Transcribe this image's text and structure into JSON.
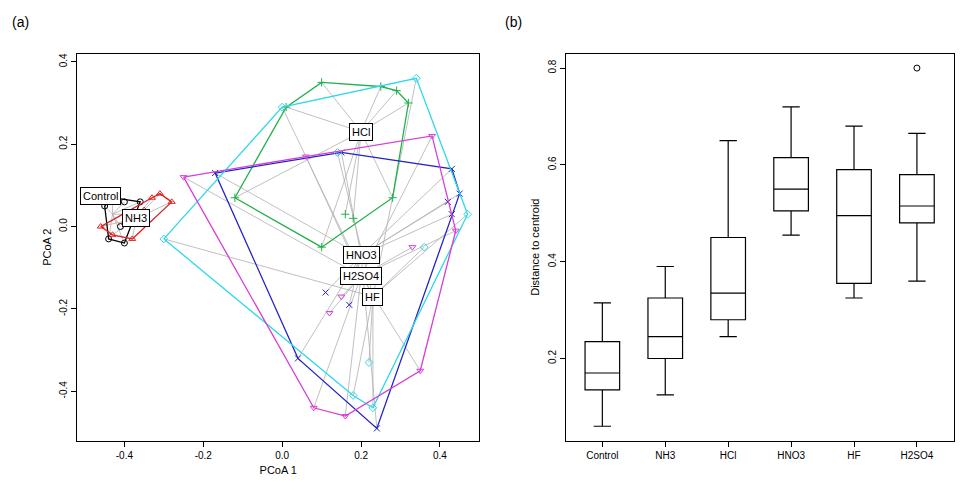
{
  "chart_data": [
    {
      "type": "scatter",
      "title": "(a)",
      "x_label": "PCoA 1",
      "y_label": "PCoA 2",
      "xlim": [
        -0.52,
        0.5
      ],
      "ylim": [
        -0.52,
        0.42
      ],
      "xticks": [
        -0.4,
        -0.2,
        {
          "value": 0,
          "label": "0.0"
        },
        0.2,
        0.4
      ],
      "yticks": [
        -0.4,
        -0.2,
        {
          "value": 0,
          "label": "0.0"
        },
        0.2,
        0.4
      ],
      "series": [
        {
          "name": "Control",
          "color": "#000000",
          "marker": "circle",
          "centroid": [
            -0.43,
            0.03
          ],
          "x": [
            -0.45,
            -0.43,
            -0.4,
            -0.38,
            -0.41,
            -0.44,
            -0.4,
            -0.36
          ],
          "y": [
            0.05,
            0.07,
            0.06,
            0.03,
            0.0,
            -0.03,
            -0.04,
            0.06
          ]
        },
        {
          "name": "NH3",
          "color": "#df1f1f",
          "marker": "triangle-up",
          "centroid": [
            -0.37,
            0.02
          ],
          "x": [
            -0.46,
            -0.43,
            -0.38,
            -0.35,
            -0.31,
            -0.28,
            -0.33,
            -0.4
          ],
          "y": [
            0.0,
            -0.02,
            -0.03,
            0.04,
            0.08,
            0.06,
            0.07,
            0.01
          ]
        },
        {
          "name": "HCl",
          "color": "#22b14c",
          "marker": "cross",
          "centroid": [
            0.2,
            0.23
          ],
          "x": [
            0.01,
            0.1,
            0.25,
            0.32,
            0.28,
            0.1,
            -0.12,
            0.16,
            0.18,
            0.29
          ],
          "y": [
            0.29,
            0.35,
            0.34,
            0.3,
            0.07,
            -0.05,
            0.07,
            0.03,
            0.02,
            0.33
          ]
        },
        {
          "name": "HNO3",
          "color": "#2323c8",
          "marker": "x",
          "centroid": [
            0.2,
            -0.07
          ],
          "x": [
            -0.17,
            0.43,
            0.45,
            0.42,
            0.24,
            0.04,
            0.15,
            0.17,
            0.11,
            0.43
          ],
          "y": [
            0.13,
            0.14,
            0.08,
            0.06,
            -0.49,
            -0.32,
            0.18,
            -0.19,
            -0.16,
            0.03
          ]
        },
        {
          "name": "HF",
          "color": "#2ed8e8",
          "marker": "diamond",
          "centroid": [
            0.23,
            -0.17
          ],
          "x": [
            -0.3,
            0.0,
            0.34,
            0.47,
            0.23,
            0.18,
            0.36,
            0.22,
            0.14
          ],
          "y": [
            -0.03,
            0.29,
            0.36,
            0.03,
            -0.44,
            -0.41,
            -0.05,
            -0.33,
            0.18
          ]
        },
        {
          "name": "H2SO4",
          "color": "#d63fd6",
          "marker": "triangle-down",
          "centroid": [
            0.2,
            -0.12
          ],
          "x": [
            -0.25,
            0.38,
            0.44,
            0.35,
            0.16,
            0.08,
            0.12,
            0.06,
            0.33,
            0.15
          ],
          "y": [
            0.12,
            0.22,
            -0.01,
            -0.35,
            -0.46,
            -0.44,
            -0.21,
            0.17,
            -0.05,
            -0.17
          ]
        }
      ]
    },
    {
      "type": "box",
      "title": "(b)",
      "y_label": "Distance to centroid",
      "ylim": [
        0.03,
        0.83
      ],
      "yticks": [
        0.2,
        0.4,
        0.6,
        0.8
      ],
      "categories": [
        "Control",
        "NH3",
        "HCl",
        "HNO3",
        "HF",
        "H2SO4"
      ],
      "whisker_low": [
        0.06,
        0.125,
        0.245,
        0.455,
        0.325,
        0.36
      ],
      "q1": [
        0.135,
        0.2,
        0.28,
        0.505,
        0.355,
        0.48
      ],
      "median": [
        0.17,
        0.245,
        0.335,
        0.55,
        0.495,
        0.515
      ],
      "q3": [
        0.235,
        0.325,
        0.45,
        0.615,
        0.59,
        0.58
      ],
      "whisker_high": [
        0.315,
        0.39,
        0.65,
        0.72,
        0.68,
        0.665
      ],
      "outliers": [
        [],
        [],
        [],
        [],
        [],
        [
          0.8
        ]
      ]
    }
  ]
}
